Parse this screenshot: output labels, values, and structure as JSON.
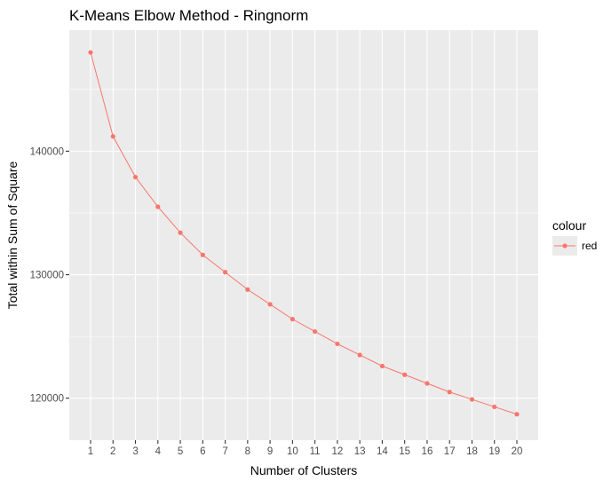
{
  "chart_data": {
    "type": "line",
    "title": "K-Means Elbow Method - Ringnorm",
    "xlabel": "Number of Clusters",
    "ylabel": "Total within Sum of Square",
    "x": [
      1,
      2,
      3,
      4,
      5,
      6,
      7,
      8,
      9,
      10,
      11,
      12,
      13,
      14,
      15,
      16,
      17,
      18,
      19,
      20
    ],
    "x_tick_labels": [
      "1",
      "2",
      "3",
      "4",
      "5",
      "6",
      "7",
      "8",
      "9",
      "10",
      "11",
      "12",
      "13",
      "14",
      "15",
      "16",
      "17",
      "18",
      "19",
      "20"
    ],
    "y_ticks": [
      120000,
      130000,
      140000
    ],
    "y_tick_labels": [
      "120000",
      "130000",
      "140000"
    ],
    "xlim": [
      0.05,
      20.95
    ],
    "ylim": [
      116600,
      149800
    ],
    "grid": true,
    "series": [
      {
        "name": "red",
        "color": "#F8766D",
        "values": [
          148000,
          141200,
          137900,
          135500,
          133400,
          131600,
          130200,
          128800,
          127600,
          126400,
          125400,
          124400,
          123500,
          122600,
          121900,
          121200,
          120500,
          119900,
          119300,
          118700
        ]
      }
    ],
    "legend": {
      "title": "colour",
      "position": "right",
      "entries": [
        "red"
      ]
    },
    "panel_background": "#EBEBEB",
    "grid_color": "#FFFFFF"
  }
}
